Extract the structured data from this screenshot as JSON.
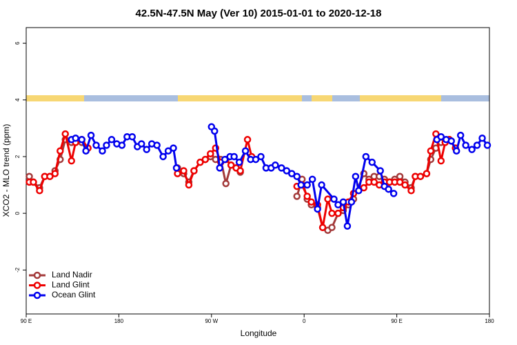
{
  "chart_data": {
    "type": "line",
    "title": "42.5N-47.5N May (Ver 10)   2015-01-01 to 2020-12-18",
    "x_label": "Longitude",
    "y_label": "XCO2 - MLO trend (ppm)",
    "xlim": [
      90,
      540
    ],
    "ylim": [
      -3.55,
      6.55
    ],
    "xticks": [
      {
        "value": 90,
        "label": "90 E"
      },
      180,
      {
        "value": 270,
        "label": "90 W"
      },
      {
        "value": 360,
        "label": "0"
      },
      {
        "value": 450,
        "label": "90 E"
      },
      {
        "value": 540,
        "label": "180"
      }
    ],
    "yticks": [
      -2,
      0,
      2,
      4,
      6
    ],
    "legend": "bottomleft",
    "series": [
      {
        "name": "Land Nadir",
        "color": "#a33a3a",
        "x": [
          93,
          97,
          103,
          108,
          113,
          118,
          123,
          128,
          134,
          138,
          144,
          150,
          200,
          237,
          243,
          248,
          253,
          259,
          264,
          269,
          274,
          279,
          284,
          289,
          294,
          298,
          325,
          353,
          358,
          363,
          367,
          373,
          378,
          383,
          387,
          393,
          398,
          403,
          408,
          418,
          423,
          428,
          433,
          438,
          443,
          448,
          453,
          458,
          464,
          468,
          473,
          479,
          483,
          488,
          493,
          501,
          507
        ],
        "values": [
          1.3,
          1.1,
          0.9,
          1.3,
          1.3,
          1.5,
          1.9,
          2.6,
          2.5,
          2.5,
          2.5,
          2.3,
          null,
          1.6,
          1.4,
          1.1,
          1.5,
          1.8,
          1.9,
          2.0,
          1.9,
          1.9,
          1.05,
          1.7,
          1.6,
          1.45,
          null,
          0.6,
          1.2,
          0.5,
          0.3,
          0.2,
          -0.5,
          -0.6,
          -0.5,
          0.0,
          0.1,
          0.3,
          0.5,
          1.4,
          1.2,
          1.3,
          1.3,
          1.2,
          1.1,
          1.2,
          1.3,
          1.1,
          0.9,
          1.3,
          1.3,
          1.4,
          1.9,
          2.3,
          2.5,
          2.6,
          2.3
        ]
      },
      {
        "name": "Land Glint",
        "color": "#ee0000",
        "x": [
          93,
          97,
          103,
          108,
          113,
          118,
          123,
          128,
          134,
          138,
          144,
          150,
          200,
          237,
          243,
          248,
          253,
          259,
          264,
          269,
          274,
          279,
          284,
          289,
          294,
          298,
          305,
          309,
          330,
          353,
          358,
          363,
          367,
          373,
          378,
          383,
          387,
          393,
          398,
          403,
          408,
          418,
          423,
          428,
          433,
          438,
          443,
          448,
          453,
          458,
          464,
          468,
          473,
          479,
          483,
          488,
          493,
          497,
          501,
          507
        ],
        "values": [
          1.1,
          1.1,
          0.8,
          1.3,
          1.3,
          1.4,
          2.2,
          2.8,
          1.85,
          2.5,
          2.6,
          2.3,
          null,
          1.4,
          1.5,
          1.0,
          1.5,
          1.8,
          1.9,
          2.1,
          2.3,
          1.8,
          1.9,
          1.7,
          1.6,
          1.5,
          2.6,
          2.0,
          null,
          0.95,
          1.0,
          0.6,
          0.4,
          0.3,
          -0.5,
          0.5,
          0.0,
          0.0,
          0.2,
          0.4,
          0.7,
          0.9,
          1.1,
          1.1,
          1.0,
          1.1,
          1.1,
          1.1,
          1.1,
          1.0,
          0.8,
          1.3,
          1.3,
          1.4,
          2.2,
          2.8,
          1.85,
          2.5,
          2.6,
          2.3
        ]
      },
      {
        "name": "Ocean Glint",
        "color": "#0000ee",
        "x": [
          134,
          138,
          144,
          148,
          153,
          158,
          164,
          168,
          173,
          178,
          183,
          188,
          193,
          198,
          202,
          207,
          212,
          217,
          223,
          228,
          233,
          236,
          250,
          270,
          273,
          278,
          283,
          288,
          292,
          297,
          303,
          308,
          313,
          318,
          323,
          328,
          332,
          338,
          343,
          348,
          353,
          357,
          363,
          368,
          373,
          377,
          389,
          393,
          398,
          402,
          406,
          410,
          413,
          420,
          426,
          434,
          438,
          442,
          447,
          470,
          489,
          493,
          498,
          503,
          508,
          512,
          517,
          523,
          528,
          533,
          538
        ],
        "values": [
          2.6,
          2.65,
          2.6,
          2.2,
          2.75,
          2.4,
          2.2,
          2.4,
          2.6,
          2.45,
          2.4,
          2.7,
          2.7,
          2.35,
          2.45,
          2.25,
          2.45,
          2.4,
          2.0,
          2.2,
          2.3,
          1.6,
          null,
          3.05,
          2.9,
          1.6,
          1.9,
          2.0,
          2.0,
          1.8,
          2.2,
          1.9,
          1.9,
          2.0,
          1.6,
          1.6,
          1.7,
          1.6,
          1.5,
          1.4,
          1.3,
          1.0,
          1.0,
          1.2,
          0.15,
          1.0,
          0.5,
          0.3,
          0.4,
          -0.45,
          0.4,
          1.3,
          0.8,
          2.0,
          1.8,
          1.5,
          0.95,
          0.85,
          0.7,
          null,
          2.6,
          2.7,
          2.6,
          2.55,
          2.2,
          2.75,
          2.4,
          2.25,
          2.4,
          2.65,
          2.4
        ]
      }
    ]
  }
}
